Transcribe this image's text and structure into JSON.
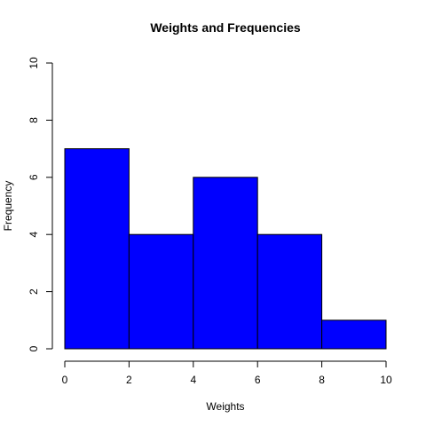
{
  "chart_data": {
    "type": "bar",
    "title": "Weights and Frequencies",
    "xlabel": "Weights",
    "ylabel": "Frequency",
    "bins": [
      {
        "start": 0,
        "end": 2,
        "value": 7
      },
      {
        "start": 2,
        "end": 4,
        "value": 4
      },
      {
        "start": 4,
        "end": 6,
        "value": 6
      },
      {
        "start": 6,
        "end": 8,
        "value": 4
      },
      {
        "start": 8,
        "end": 10,
        "value": 1
      }
    ],
    "xlim": [
      0,
      10
    ],
    "ylim": [
      0,
      10
    ],
    "xticks": [
      0,
      2,
      4,
      6,
      8,
      10
    ],
    "yticks": [
      0,
      2,
      4,
      6,
      8,
      10
    ],
    "grid": false,
    "colors": {
      "bar_fill": "#0000FF",
      "bar_border": "#000000"
    }
  }
}
